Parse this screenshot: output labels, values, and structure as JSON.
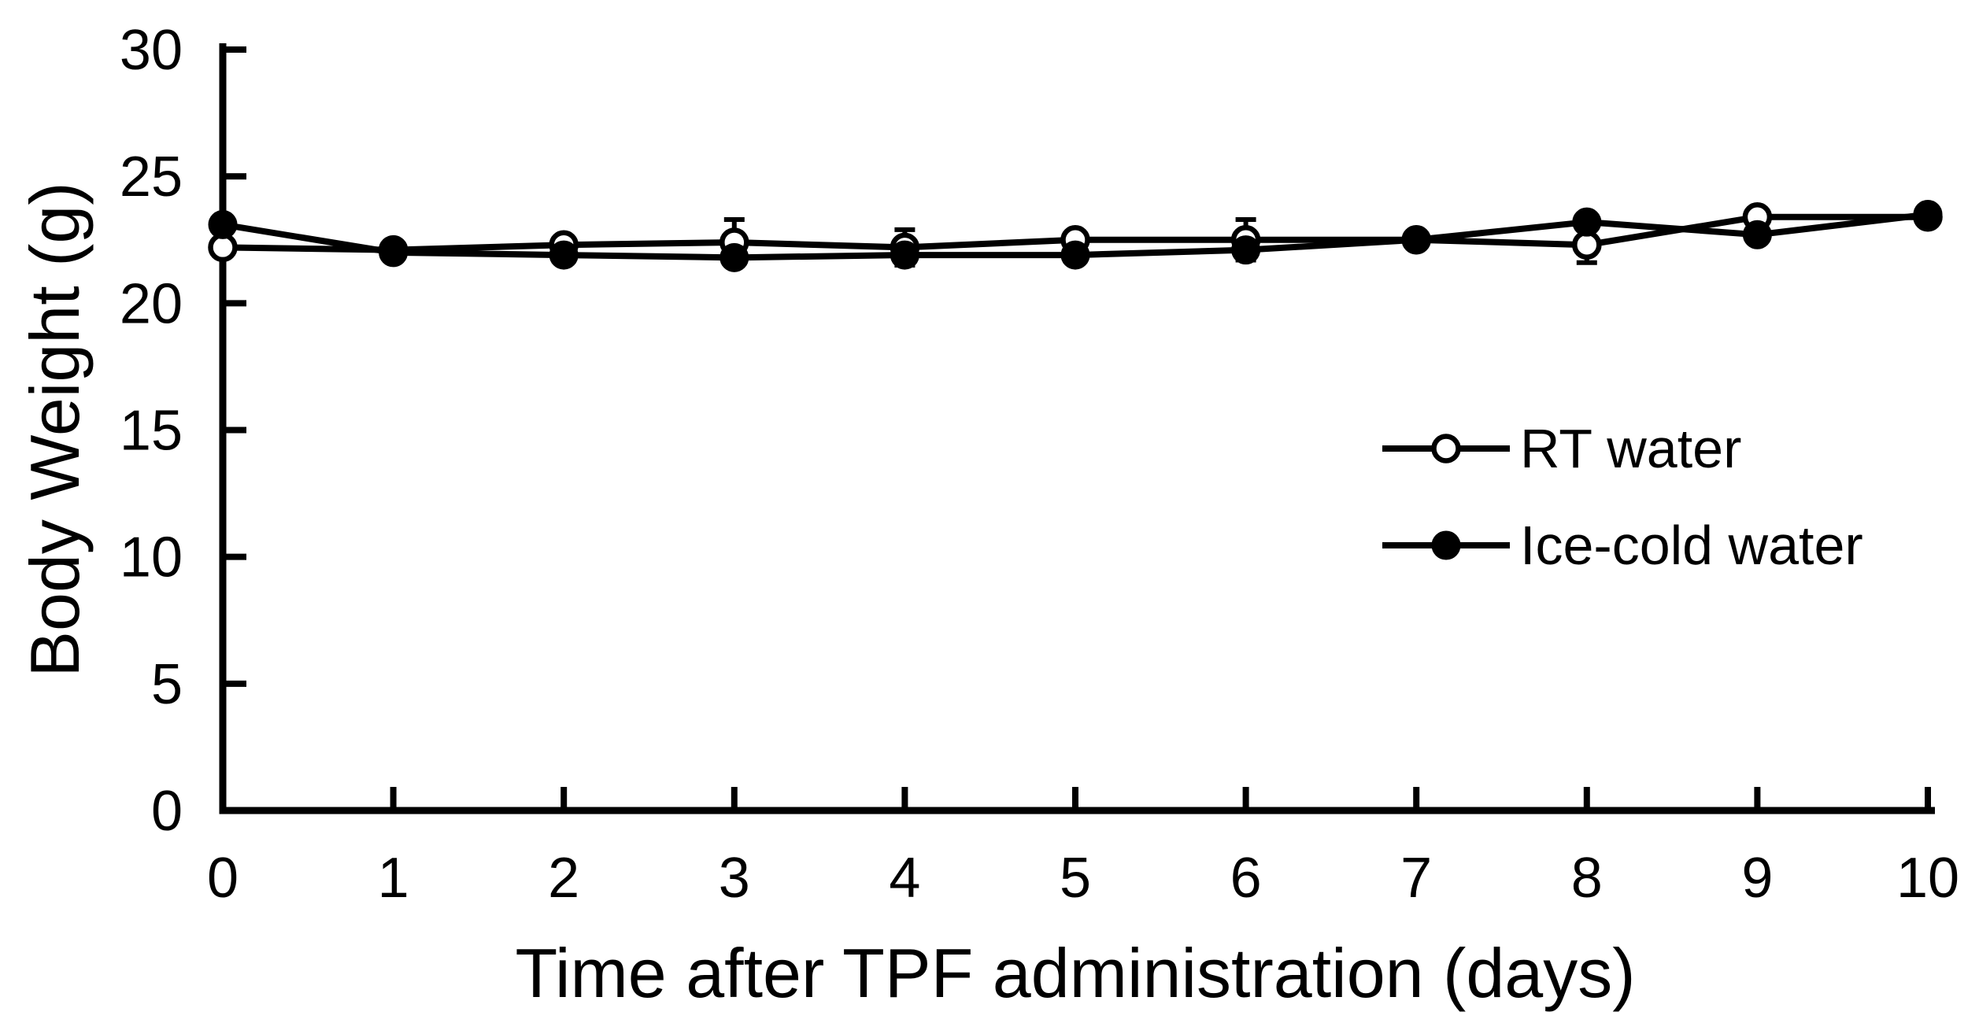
{
  "figure": {
    "background_color": "#ffffff",
    "ink_color": "#000000"
  },
  "chart_data": {
    "type": "line",
    "title": "",
    "xlabel": "Time after TPF administration (days)",
    "ylabel": "Body Weight (g)",
    "x": [
      0,
      1,
      2,
      3,
      4,
      5,
      6,
      7,
      8,
      9,
      10
    ],
    "xlim": [
      0,
      10
    ],
    "ylim": [
      0,
      30
    ],
    "yticks": [
      0,
      5,
      10,
      15,
      20,
      25,
      30
    ],
    "xticks": [
      0,
      1,
      2,
      3,
      4,
      5,
      6,
      7,
      8,
      9,
      10
    ],
    "grid": false,
    "legend_position": "inside-right",
    "error_bars": "small SEM bars, mostly hidden behind markers; caps visible on RT water at days 3, 4, 6 (top) and 8 (bottom)",
    "series": [
      {
        "name": "RT water",
        "marker": "open-circle",
        "color": "#000000",
        "values": [
          22.2,
          22.1,
          22.3,
          22.4,
          22.2,
          22.5,
          22.5,
          22.5,
          22.3,
          23.4,
          23.4
        ],
        "errors": [
          0.2,
          0.2,
          0.25,
          0.9,
          0.7,
          0.25,
          0.8,
          0.2,
          0.7,
          0.3,
          0.2
        ]
      },
      {
        "name": "Ice-cold water",
        "marker": "filled-circle",
        "color": "#000000",
        "values": [
          23.1,
          22.0,
          21.9,
          21.8,
          21.9,
          21.9,
          22.1,
          22.5,
          23.2,
          22.7,
          23.5
        ],
        "errors": [
          0.15,
          0.15,
          0.15,
          0.15,
          0.15,
          0.15,
          0.15,
          0.15,
          0.15,
          0.15,
          0.15
        ]
      }
    ]
  }
}
